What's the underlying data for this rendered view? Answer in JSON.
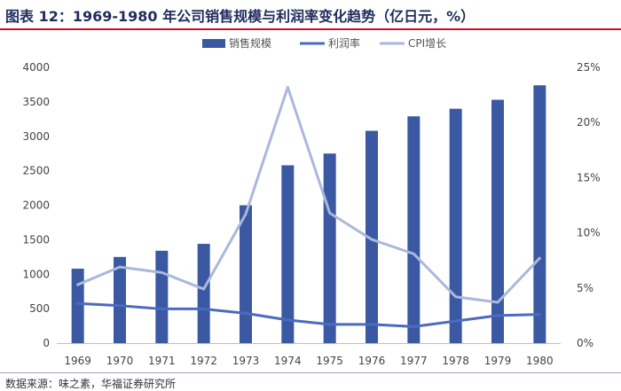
{
  "title": "图表 12：1969-1980 年公司销售规模与利润率变化趋势（亿日元，%）",
  "source": "数据来源：味之素，华福证券研究所",
  "colors": {
    "bar": "#3b58a3",
    "profit": "#4a6bbf",
    "cpi": "#aab8da",
    "title": "#1f2d5c",
    "rule": "#c8102e"
  },
  "chart_data": {
    "type": "bar",
    "categories": [
      "1969",
      "1970",
      "1971",
      "1972",
      "1973",
      "1974",
      "1975",
      "1976",
      "1977",
      "1978",
      "1979",
      "1980"
    ],
    "series": [
      {
        "name": "销售规模",
        "type": "bar",
        "axis": "left",
        "values": [
          1080,
          1250,
          1340,
          1440,
          2000,
          2580,
          2750,
          3080,
          3290,
          3400,
          3530,
          3740
        ]
      },
      {
        "name": "利润率",
        "type": "line",
        "axis": "right",
        "values": [
          3.6,
          3.4,
          3.1,
          3.1,
          2.7,
          2.1,
          1.7,
          1.7,
          1.5,
          2.0,
          2.5,
          2.6
        ]
      },
      {
        "name": "CPI增长",
        "type": "line",
        "axis": "right",
        "values": [
          5.3,
          6.9,
          6.4,
          4.9,
          11.7,
          23.2,
          11.8,
          9.4,
          8.1,
          4.2,
          3.7,
          7.7
        ]
      }
    ],
    "left_axis": {
      "ylim": [
        0,
        4000
      ],
      "ticks": [
        "0",
        "500",
        "1000",
        "1500",
        "2000",
        "2500",
        "3000",
        "3500",
        "4000"
      ]
    },
    "right_axis": {
      "ylim": [
        0,
        25
      ],
      "ticks": [
        "0%",
        "5%",
        "10%",
        "15%",
        "20%",
        "25%"
      ]
    },
    "legend_position": "top-center",
    "grid": false
  }
}
